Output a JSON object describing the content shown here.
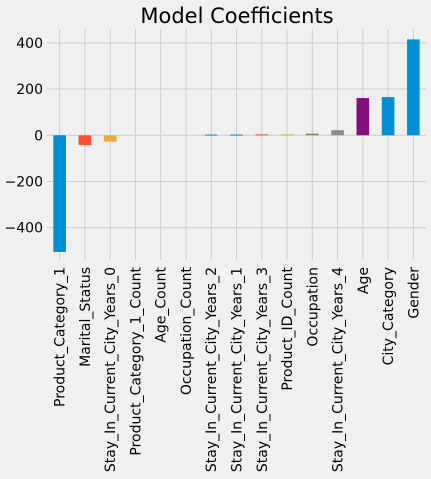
{
  "chart_data": {
    "type": "bar",
    "title": "Model Coefficients",
    "xlabel": "",
    "ylabel": "",
    "categories": [
      "Product_Category_1",
      "Marital_Status",
      "Stay_In_Current_City_Years_0",
      "Product_Category_1_Count",
      "Age_Count",
      "Occupation_Count",
      "Stay_In_Current_City_Years_2",
      "Stay_In_Current_City_Years_1",
      "Stay_In_Current_City_Years_3",
      "Product_ID_Count",
      "Occupation",
      "Stay_In_Current_City_Years_4",
      "Age",
      "City_Category",
      "Gender"
    ],
    "values": [
      -505,
      -42,
      -28,
      0,
      0,
      0,
      3,
      3,
      4,
      4,
      7,
      22,
      161,
      165,
      415
    ],
    "colors": [
      "#008fd5",
      "#fc4f30",
      "#e5ae38",
      "#6d904f",
      "#8b8b8b",
      "#810f7c",
      "#008fd5",
      "#008fd5",
      "#fc4f30",
      "#e5ae38",
      "#6d904f",
      "#8b8b8b",
      "#810f7c",
      "#008fd5",
      "#008fd5"
    ],
    "ylim": [
      -540,
      460
    ],
    "yticks": [
      -400,
      -200,
      0,
      200,
      400
    ],
    "ytick_labels": [
      "−400",
      "−200",
      "0",
      "200",
      "400"
    ],
    "grid": true,
    "legend": "none"
  }
}
